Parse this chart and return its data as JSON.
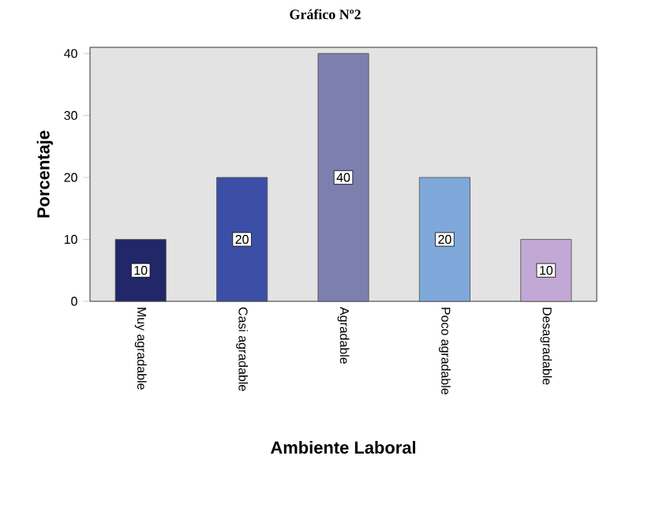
{
  "chart_data": {
    "type": "bar",
    "title": "Gráfico Nº2",
    "xlabel": "Ambiente Laboral",
    "ylabel": "Porcentaje",
    "categories": [
      "Muy agradable",
      "Casi agradable",
      "Agradable",
      "Poco agradable",
      "Desagradable"
    ],
    "values": [
      10,
      20,
      40,
      20,
      10
    ],
    "colors": [
      "#22276a",
      "#3c4fa6",
      "#7d7fae",
      "#7fa8da",
      "#c2a8d4"
    ],
    "ylim": [
      0,
      41
    ],
    "yticks": [
      0,
      10,
      20,
      30,
      40
    ],
    "data_labels": true
  }
}
